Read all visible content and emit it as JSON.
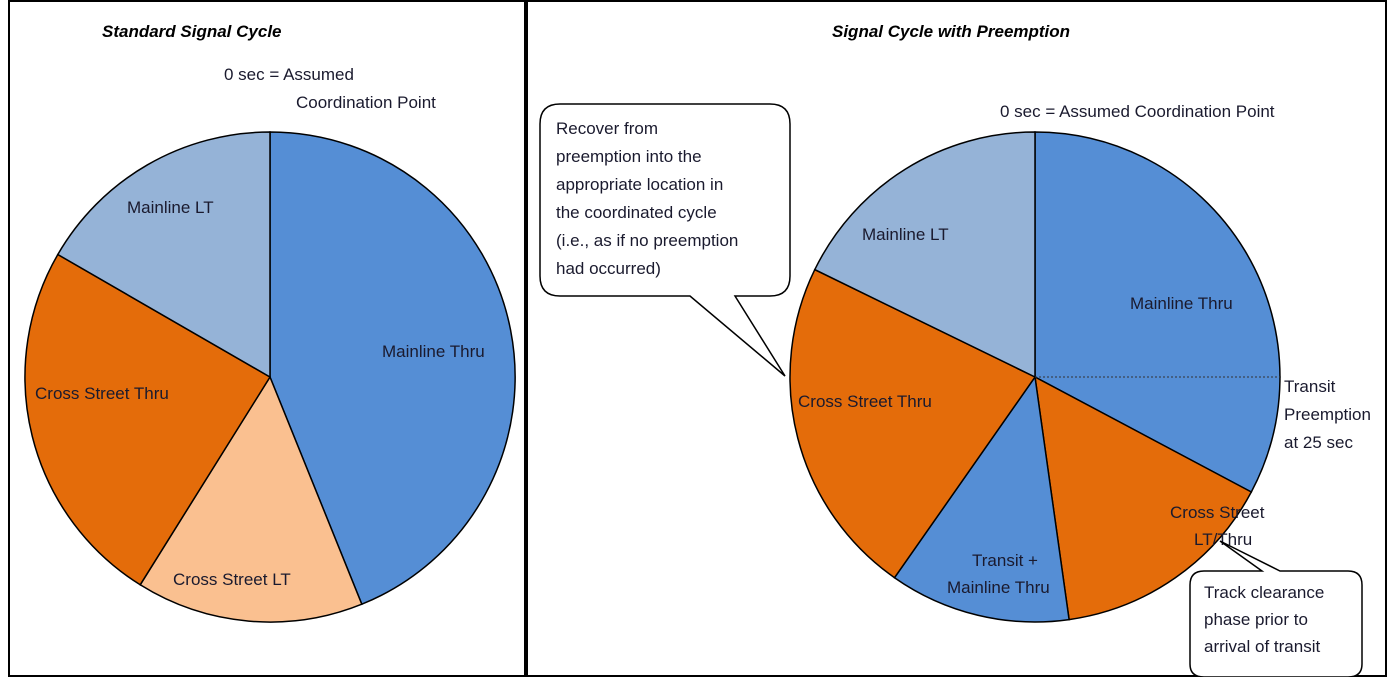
{
  "colors": {
    "mainline_thru": "#558ed5",
    "mainline_lt": "#95b3d7",
    "cross_street_thru": "#e46c0a",
    "cross_street_lt": "#fac090",
    "outline": "#000000"
  },
  "left": {
    "title": "Standard Signal Cycle",
    "coord_note": [
      "0 sec = Assumed",
      "Coordination Point"
    ],
    "slices": [
      {
        "label": "Mainline Thru",
        "start": 0,
        "end": 158
      },
      {
        "label": "Cross Street LT",
        "start": 158,
        "end": 212
      },
      {
        "label": "Cross Street Thru",
        "start": 212,
        "end": 300
      },
      {
        "label": "Mainline LT",
        "start": 300,
        "end": 360
      }
    ]
  },
  "right": {
    "title": "Signal Cycle with Preemption",
    "coord_note": "0 sec = Assumed Coordination Point",
    "slices": [
      {
        "label": "Mainline Thru",
        "start": 0,
        "end": 118
      },
      {
        "label": "Cross Street LT/Thru",
        "start": 118,
        "end": 172
      },
      {
        "label": "Transit + Mainline Thru",
        "start": 172,
        "end": 215
      },
      {
        "label": "Cross Street Thru",
        "start": 215,
        "end": 296
      },
      {
        "label": "Mainline LT",
        "start": 296,
        "end": 360
      }
    ],
    "preemption_note": [
      "Transit",
      "Preemption",
      "at 25 sec"
    ],
    "recover_callout": [
      "Recover from",
      "preemption into the",
      "appropriate location in",
      "the coordinated cycle",
      "(i.e., as if no preemption",
      "had occurred)"
    ],
    "track_callout": [
      "Track clearance",
      "phase prior to",
      "arrival of transit"
    ]
  }
}
